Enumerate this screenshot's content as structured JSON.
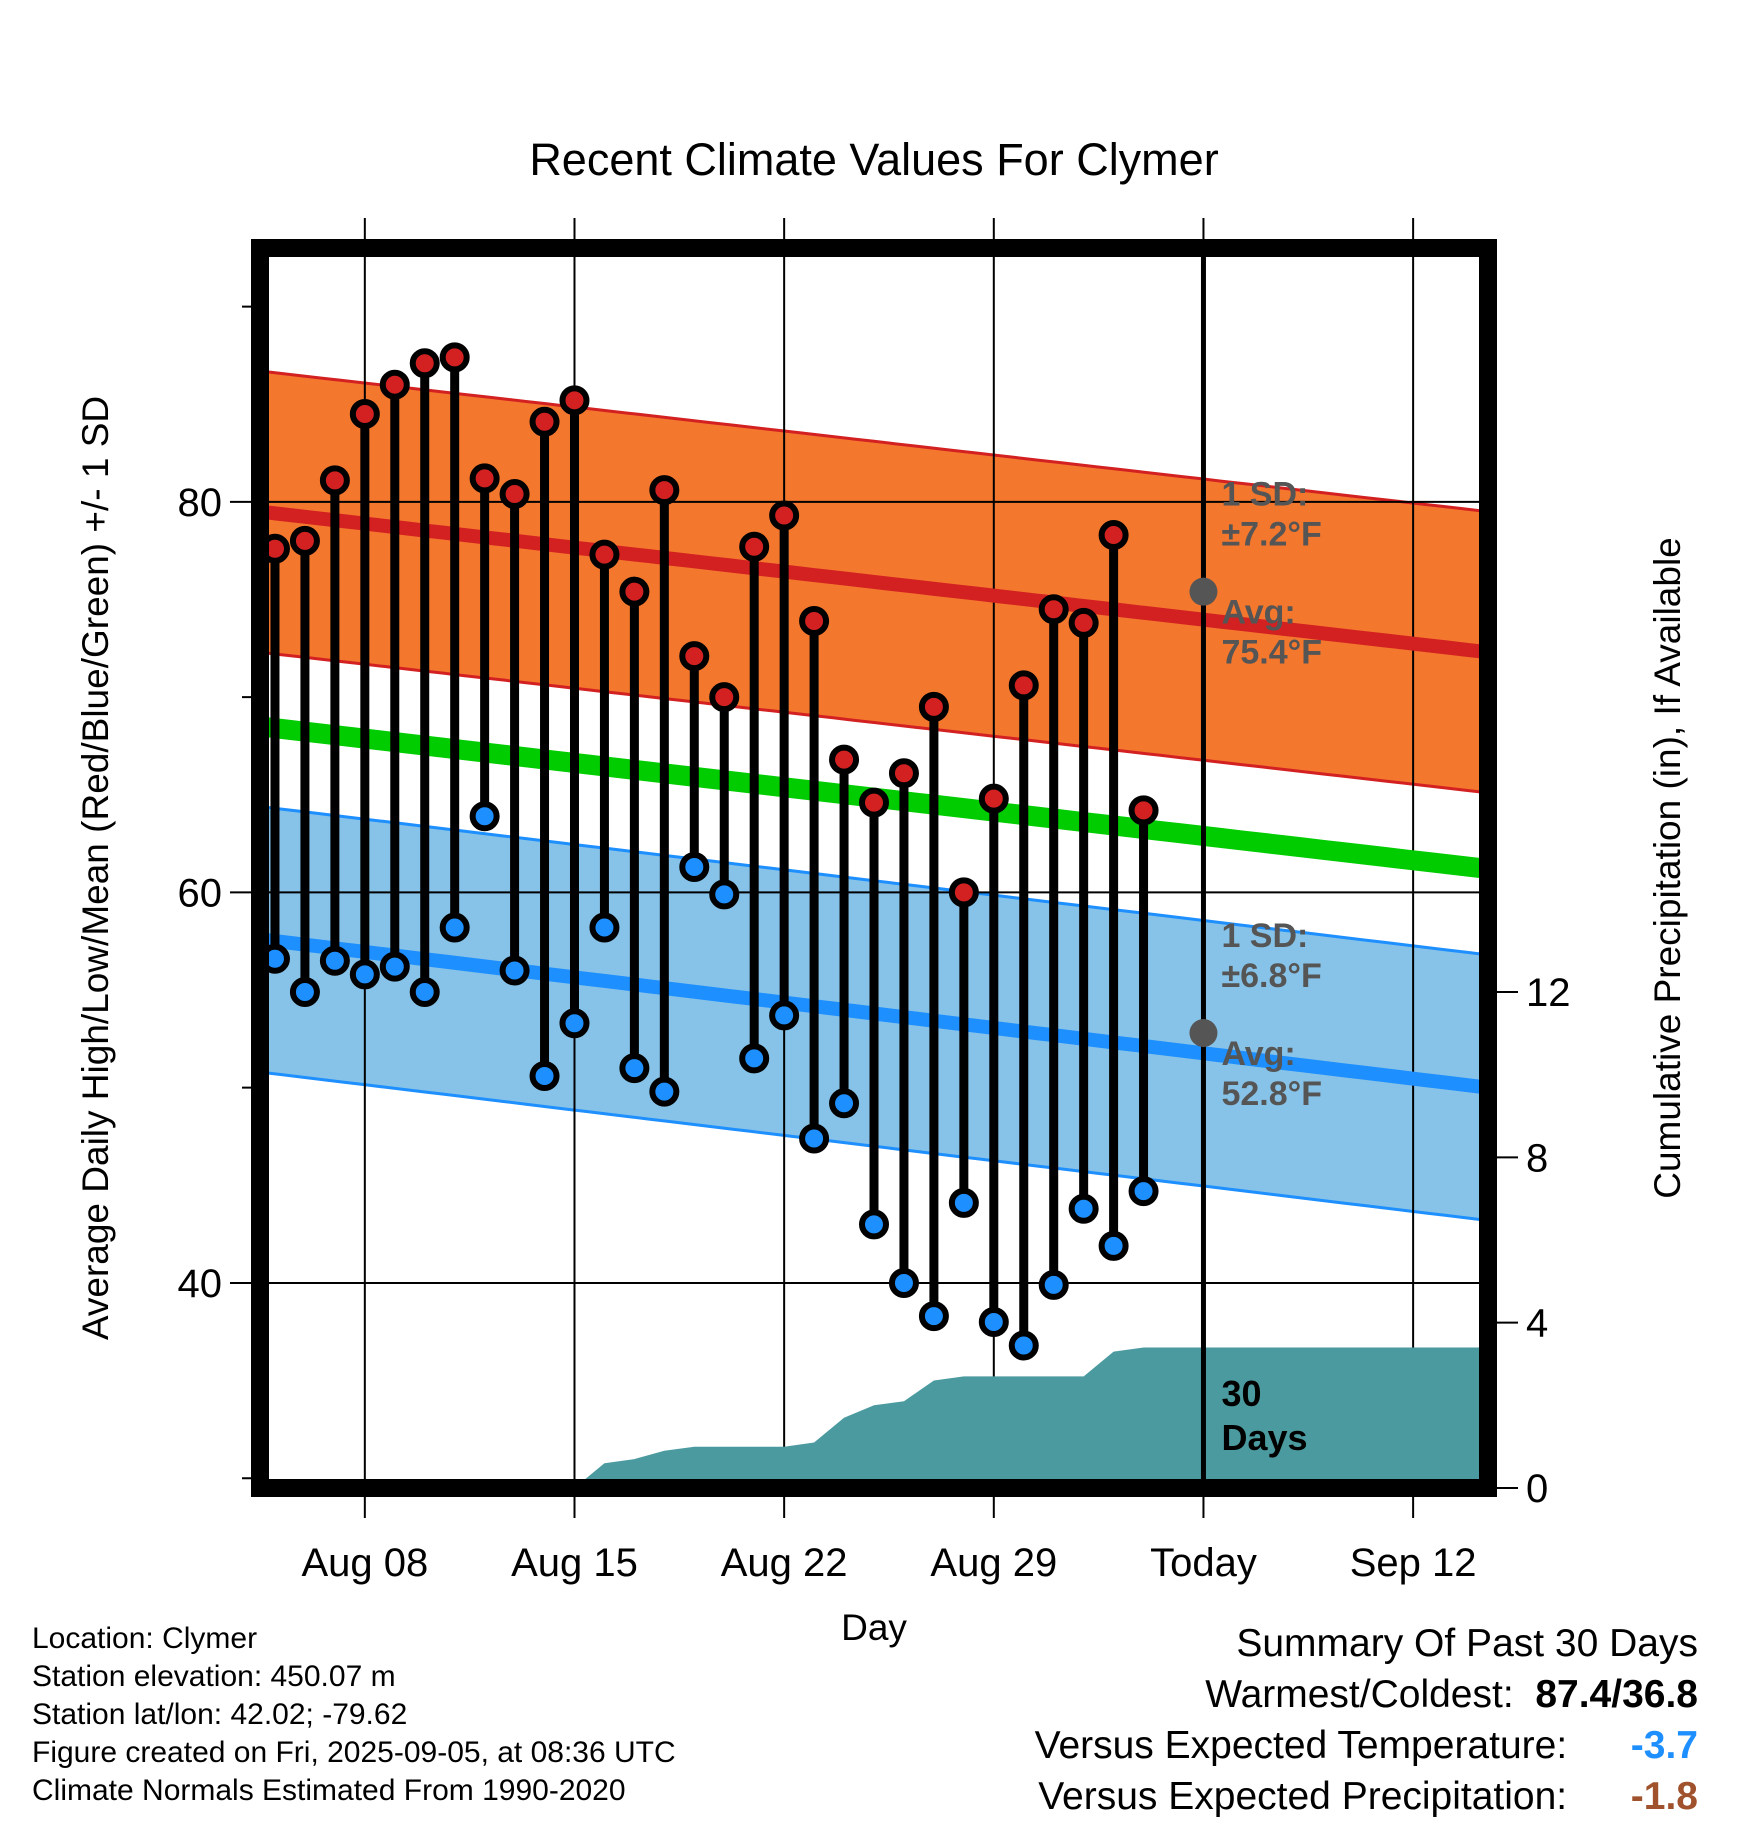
{
  "chart_data": {
    "type": "line",
    "title": "Recent Climate Values For Clymer",
    "xlabel": "Day",
    "ylabel": "Average Daily High/Low/Mean (Red/Blue/Green) +/- 1 SD",
    "ylabel_right": "Cumulative Precipitation (in), If Available",
    "x_start_date": "2025-08-04",
    "x_range_days": [
      0.5,
      41.5
    ],
    "ylim": [
      29.5,
      93
    ],
    "y2lim": [
      0,
      30
    ],
    "y_ticks": [
      40,
      60,
      80
    ],
    "y2_ticks": [
      0,
      4,
      8,
      12
    ],
    "x_ticks": [
      {
        "day": 4,
        "label": "Aug 08"
      },
      {
        "day": 11,
        "label": "Aug 15"
      },
      {
        "day": 18,
        "label": "Aug 22"
      },
      {
        "day": 25,
        "label": "Aug 29"
      },
      {
        "day": 32,
        "label": "Today"
      },
      {
        "day": 39,
        "label": "Sep 12"
      }
    ],
    "today_day": 32,
    "grid": true,
    "normal_high": {
      "color": "#d32121",
      "band_color": "#f4772e",
      "start": 79.5,
      "end": 72.3,
      "sd": 7.2,
      "sd_label": "1 SD:",
      "sd_value": "±7.2°F",
      "avg_label": "Avg:",
      "avg_value": "75.4°F",
      "today_avg": 75.4
    },
    "normal_low": {
      "color": "#1e8fff",
      "band_color": "#87c3e8",
      "start": 57.6,
      "end": 50.0,
      "sd": 6.8,
      "sd_label": "1 SD:",
      "sd_value": "±6.8°F",
      "avg_label": "Avg:",
      "avg_value": "52.8°F",
      "today_avg": 52.8
    },
    "normal_mean": {
      "color": "#00cc00",
      "start": 68.5,
      "end": 61.2
    },
    "daily": [
      {
        "day": 1,
        "high": 77.6,
        "low": 56.6
      },
      {
        "day": 2,
        "high": 78.0,
        "low": 54.9
      },
      {
        "day": 3,
        "high": 81.1,
        "low": 56.5
      },
      {
        "day": 4,
        "high": 84.5,
        "low": 55.8
      },
      {
        "day": 5,
        "high": 86.0,
        "low": 56.2
      },
      {
        "day": 6,
        "high": 87.1,
        "low": 54.9
      },
      {
        "day": 7,
        "high": 87.4,
        "low": 58.2
      },
      {
        "day": 8,
        "high": 81.2,
        "low": 63.9
      },
      {
        "day": 9,
        "high": 80.4,
        "low": 56.0
      },
      {
        "day": 10,
        "high": 84.1,
        "low": 50.6
      },
      {
        "day": 11,
        "high": 85.2,
        "low": 53.3
      },
      {
        "day": 12,
        "high": 77.3,
        "low": 58.2
      },
      {
        "day": 13,
        "high": 75.4,
        "low": 51.0
      },
      {
        "day": 14,
        "high": 80.6,
        "low": 49.8
      },
      {
        "day": 15,
        "high": 72.1,
        "low": 61.3
      },
      {
        "day": 16,
        "high": 70.0,
        "low": 59.9
      },
      {
        "day": 17,
        "high": 77.7,
        "low": 51.5
      },
      {
        "day": 18,
        "high": 79.3,
        "low": 53.7
      },
      {
        "day": 19,
        "high": 73.9,
        "low": 47.4
      },
      {
        "day": 20,
        "high": 66.8,
        "low": 49.2
      },
      {
        "day": 21,
        "high": 64.6,
        "low": 43.0
      },
      {
        "day": 22,
        "high": 66.1,
        "low": 40.0
      },
      {
        "day": 23,
        "high": 69.5,
        "low": 38.3
      },
      {
        "day": 24,
        "high": 60.0,
        "low": 44.1
      },
      {
        "day": 25,
        "high": 64.8,
        "low": 38.0
      },
      {
        "day": 26,
        "high": 70.6,
        "low": 36.8
      },
      {
        "day": 27,
        "high": 74.5,
        "low": 39.9
      },
      {
        "day": 28,
        "high": 73.8,
        "low": 43.8
      },
      {
        "day": 29,
        "high": 78.3,
        "low": 41.9
      },
      {
        "day": 30,
        "high": 64.2,
        "low": 44.7
      }
    ],
    "precip_color": "#4a9aa0",
    "precip_cumulative": [
      {
        "day": 11,
        "value": 0
      },
      {
        "day": 12,
        "value": 0.6
      },
      {
        "day": 13,
        "value": 0.7
      },
      {
        "day": 14,
        "value": 0.9
      },
      {
        "day": 15,
        "value": 1.0
      },
      {
        "day": 16,
        "value": 1.0
      },
      {
        "day": 17,
        "value": 1.0
      },
      {
        "day": 18,
        "value": 1.0
      },
      {
        "day": 19,
        "value": 1.1
      },
      {
        "day": 20,
        "value": 1.7
      },
      {
        "day": 21,
        "value": 2.0
      },
      {
        "day": 22,
        "value": 2.1
      },
      {
        "day": 23,
        "value": 2.6
      },
      {
        "day": 24,
        "value": 2.7
      },
      {
        "day": 25,
        "value": 2.7
      },
      {
        "day": 26,
        "value": 2.7
      },
      {
        "day": 27,
        "value": 2.7
      },
      {
        "day": 28,
        "value": 2.7
      },
      {
        "day": 29,
        "value": 3.3
      },
      {
        "day": 30,
        "value": 3.4
      },
      {
        "day": 41.5,
        "value": 3.4
      }
    ],
    "precip_label_line1": "30",
    "precip_label_line2": "Days"
  },
  "footer": {
    "location": "Location: Clymer",
    "elevation": "Station elevation: 450.07 m",
    "latlon": "Station lat/lon: 42.02; -79.62",
    "created": "Figure created on Fri, 2025-09-05, at 08:36 UTC",
    "normals": "Climate Normals Estimated From 1990-2020"
  },
  "summary": {
    "title": "Summary Of Past 30 Days",
    "warmest_label": "Warmest/Coldest:",
    "warmest_value": "87.4/36.8",
    "temp_label": "Versus Expected Temperature:",
    "temp_value": "-3.7",
    "temp_color": "#1e8fff",
    "precip_label": "Versus Expected Precipitation:",
    "precip_value": "-1.8",
    "precip_color": "#a0522d"
  }
}
